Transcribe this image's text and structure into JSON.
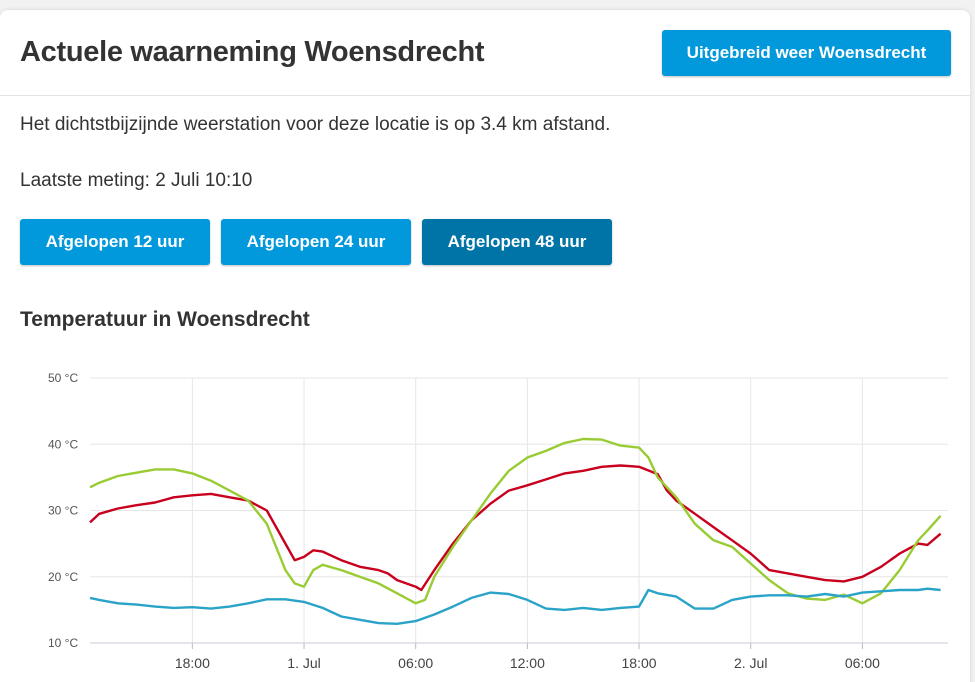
{
  "header": {
    "title": "Actuele waarneming Woensdrecht",
    "button_label": "Uitgebreid weer Woensdrecht"
  },
  "info": {
    "station_text": "Het dichtstbijzijnde weerstation voor deze locatie is op 3.4 km afstand.",
    "last_measurement": "Laatste meting: 2 Juli 10:10"
  },
  "range_buttons": [
    {
      "label": "Afgelopen 12 uur",
      "active": false
    },
    {
      "label": "Afgelopen 24 uur",
      "active": false
    },
    {
      "label": "Afgelopen 48 uur",
      "active": true
    }
  ],
  "colors": {
    "primary": "#0298dc",
    "primary_active": "#0074a6",
    "series_red": "#c8001e",
    "series_green": "#99cc33",
    "series_blue": "#2aa3c8"
  },
  "chart_data": {
    "type": "line",
    "title": "Temperatuur in Woensdrecht",
    "ylim": [
      10,
      50
    ],
    "y_ticks": [
      "10 °C",
      "20 °C",
      "30 °C",
      "40 °C",
      "50 °C"
    ],
    "y_tick_values": [
      10,
      20,
      30,
      40,
      50
    ],
    "x_ticks": [
      {
        "label": "18:00",
        "hour": 18
      },
      {
        "label": "1. Jul",
        "hour": 24
      },
      {
        "label": "06:00",
        "hour": 30
      },
      {
        "label": "12:00",
        "hour": 36
      },
      {
        "label": "18:00",
        "hour": 42
      },
      {
        "label": "2. Jul",
        "hour": 48
      },
      {
        "label": "06:00",
        "hour": 54
      }
    ],
    "x_range_hours": [
      12.5,
      58.6
    ],
    "grid": true,
    "series": [
      {
        "color": "#c8001e",
        "points": [
          [
            12.5,
            28.2
          ],
          [
            13,
            29.5
          ],
          [
            14,
            30.3
          ],
          [
            15,
            30.8
          ],
          [
            16,
            31.2
          ],
          [
            17,
            32
          ],
          [
            18,
            32.3
          ],
          [
            19,
            32.5
          ],
          [
            20,
            32
          ],
          [
            21,
            31.5
          ],
          [
            22,
            30
          ],
          [
            23,
            25
          ],
          [
            23.5,
            22.5
          ],
          [
            24,
            23
          ],
          [
            24.5,
            24
          ],
          [
            25,
            23.8
          ],
          [
            26,
            22.5
          ],
          [
            27,
            21.5
          ],
          [
            28,
            21
          ],
          [
            28.5,
            20.5
          ],
          [
            29,
            19.5
          ],
          [
            30,
            18.5
          ],
          [
            30.3,
            18
          ],
          [
            31,
            21
          ],
          [
            32,
            25
          ],
          [
            33,
            28.5
          ],
          [
            34,
            31
          ],
          [
            35,
            33
          ],
          [
            36,
            33.8
          ],
          [
            37,
            34.7
          ],
          [
            38,
            35.6
          ],
          [
            39,
            36
          ],
          [
            40,
            36.6
          ],
          [
            41,
            36.8
          ],
          [
            42,
            36.6
          ],
          [
            43,
            35.5
          ],
          [
            43.5,
            33
          ],
          [
            44,
            31.5
          ],
          [
            45,
            29.5
          ],
          [
            46,
            27.5
          ],
          [
            47,
            25.5
          ],
          [
            48,
            23.5
          ],
          [
            49,
            21
          ],
          [
            50,
            20.5
          ],
          [
            51,
            20
          ],
          [
            52,
            19.5
          ],
          [
            53,
            19.3
          ],
          [
            54,
            20
          ],
          [
            55,
            21.5
          ],
          [
            56,
            23.5
          ],
          [
            57,
            25
          ],
          [
            57.5,
            24.8
          ],
          [
            58.2,
            26.5
          ]
        ]
      },
      {
        "color": "#99cc33",
        "points": [
          [
            12.5,
            33.5
          ],
          [
            13,
            34.2
          ],
          [
            14,
            35.2
          ],
          [
            15,
            35.7
          ],
          [
            16,
            36.2
          ],
          [
            17,
            36.2
          ],
          [
            18,
            35.6
          ],
          [
            19,
            34.5
          ],
          [
            20,
            33
          ],
          [
            21,
            31.5
          ],
          [
            22,
            28
          ],
          [
            23,
            21
          ],
          [
            23.5,
            19
          ],
          [
            24,
            18.5
          ],
          [
            24.5,
            21
          ],
          [
            25,
            21.8
          ],
          [
            26,
            21
          ],
          [
            27,
            20
          ],
          [
            28,
            19
          ],
          [
            29,
            17.5
          ],
          [
            30,
            16
          ],
          [
            30.5,
            16.5
          ],
          [
            31,
            20
          ],
          [
            32,
            24.5
          ],
          [
            33,
            28.5
          ],
          [
            34,
            32.5
          ],
          [
            35,
            36
          ],
          [
            36,
            38
          ],
          [
            37,
            39
          ],
          [
            38,
            40.2
          ],
          [
            39,
            40.8
          ],
          [
            40,
            40.7
          ],
          [
            41,
            39.8
          ],
          [
            42,
            39.5
          ],
          [
            42.5,
            38
          ],
          [
            43,
            35
          ],
          [
            44,
            32
          ],
          [
            45,
            28
          ],
          [
            46,
            25.5
          ],
          [
            47,
            24.5
          ],
          [
            48,
            22
          ],
          [
            49,
            19.5
          ],
          [
            50,
            17.5
          ],
          [
            51,
            16.7
          ],
          [
            52,
            16.5
          ],
          [
            53,
            17.3
          ],
          [
            54,
            16
          ],
          [
            55,
            17.5
          ],
          [
            56,
            21
          ],
          [
            57,
            25.5
          ],
          [
            57.5,
            27
          ],
          [
            58.2,
            29.2
          ]
        ]
      },
      {
        "color": "#2aa3c8",
        "points": [
          [
            12.5,
            16.8
          ],
          [
            13,
            16.5
          ],
          [
            14,
            16
          ],
          [
            15,
            15.8
          ],
          [
            16,
            15.5
          ],
          [
            17,
            15.3
          ],
          [
            18,
            15.4
          ],
          [
            19,
            15.2
          ],
          [
            20,
            15.5
          ],
          [
            21,
            16
          ],
          [
            22,
            16.6
          ],
          [
            23,
            16.6
          ],
          [
            24,
            16.2
          ],
          [
            25,
            15.3
          ],
          [
            26,
            14
          ],
          [
            27,
            13.5
          ],
          [
            28,
            13
          ],
          [
            29,
            12.9
          ],
          [
            30,
            13.3
          ],
          [
            31,
            14.3
          ],
          [
            32,
            15.5
          ],
          [
            33,
            16.8
          ],
          [
            34,
            17.6
          ],
          [
            35,
            17.4
          ],
          [
            36,
            16.5
          ],
          [
            37,
            15.2
          ],
          [
            38,
            15
          ],
          [
            39,
            15.3
          ],
          [
            40,
            15
          ],
          [
            41,
            15.3
          ],
          [
            42,
            15.5
          ],
          [
            42.5,
            18
          ],
          [
            43,
            17.5
          ],
          [
            44,
            17
          ],
          [
            45,
            15.2
          ],
          [
            46,
            15.2
          ],
          [
            47,
            16.5
          ],
          [
            48,
            17
          ],
          [
            49,
            17.2
          ],
          [
            50,
            17.2
          ],
          [
            51,
            17
          ],
          [
            52,
            17.4
          ],
          [
            53,
            17
          ],
          [
            54,
            17.6
          ],
          [
            55,
            17.8
          ],
          [
            56,
            18
          ],
          [
            57,
            18
          ],
          [
            57.5,
            18.2
          ],
          [
            58.2,
            18
          ]
        ]
      }
    ]
  }
}
